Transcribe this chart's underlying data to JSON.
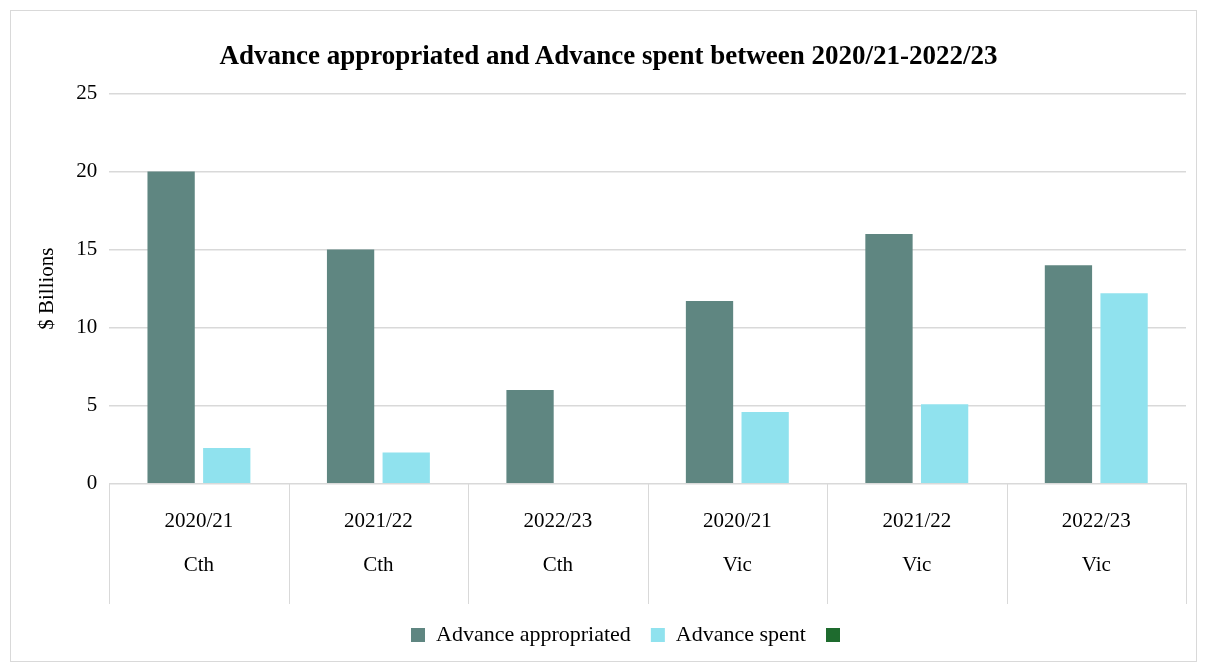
{
  "chart_data": {
    "type": "bar",
    "title": "Advance appropriated and Advance spent between 2020/21-2022/23",
    "ylabel": "$ Billions",
    "categories": [
      "2020/21\nCth",
      "2021/22\nCth",
      "2022/23\nCth",
      "2020/21\nVic",
      "2021/22\nVic",
      "2022/23\nVic"
    ],
    "series": [
      {
        "name": "Advance appropriated",
        "color": "#5f8681",
        "values": [
          20,
          15,
          6,
          11.7,
          16,
          14
        ]
      },
      {
        "name": "Advance spent",
        "color": "#90e2ee",
        "values": [
          2.3,
          2.0,
          null,
          4.6,
          5.1,
          12.2
        ]
      }
    ],
    "ylim": [
      0,
      25
    ],
    "yticks": [
      0,
      5,
      10,
      15,
      20,
      25
    ],
    "grid": "y",
    "legend": "bottom"
  }
}
